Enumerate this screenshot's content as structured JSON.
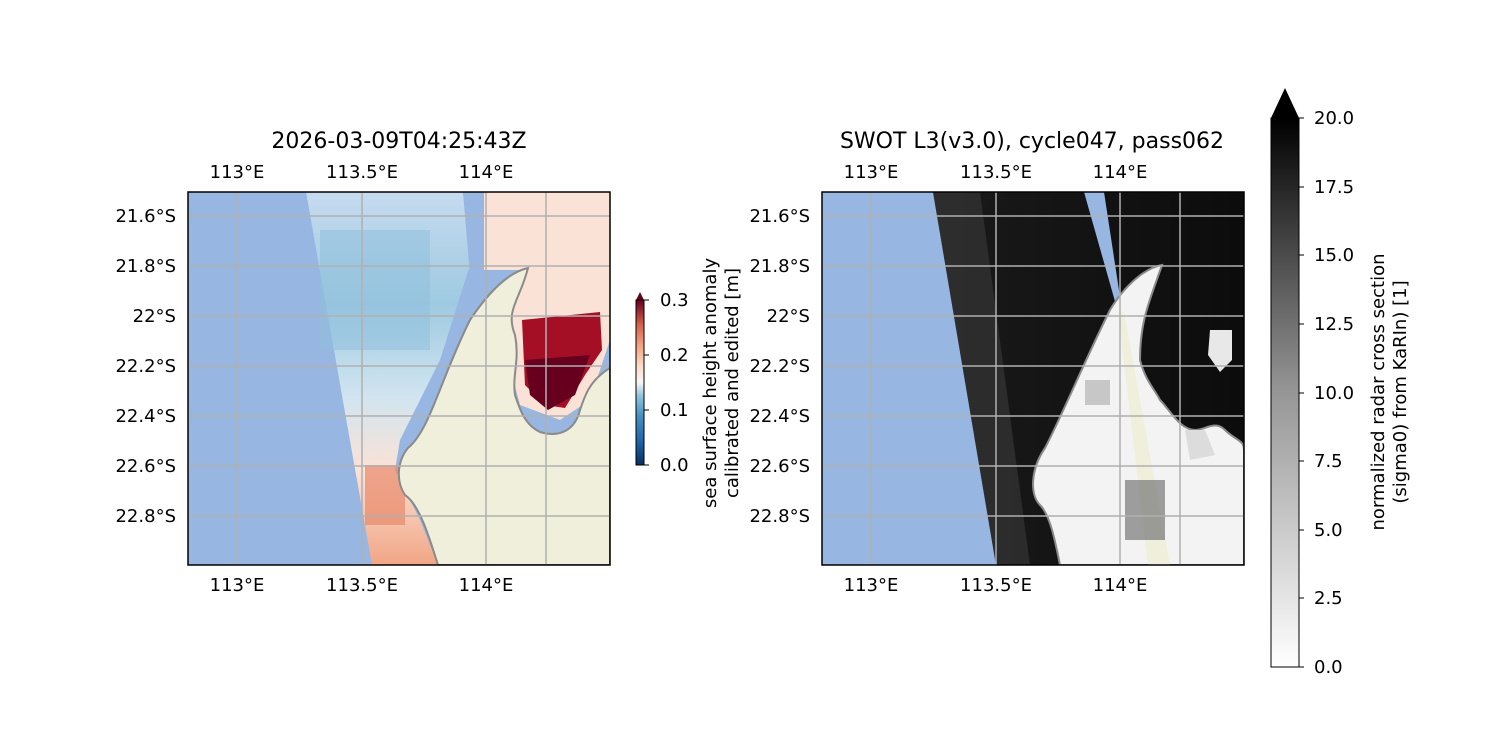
{
  "left_panel": {
    "title": "2026-03-09T04:25:43Z",
    "lon_ticks": [
      "113°E",
      "113.5°E",
      "114°E"
    ],
    "lat_ticks": [
      "21.6°S",
      "21.8°S",
      "22°S",
      "22.2°S",
      "22.4°S",
      "22.6°S",
      "22.8°S"
    ],
    "colorbar": {
      "label_line1": "sea surface height anomaly",
      "label_line2": "calibrated and edited [m]",
      "ticks": [
        "0.0",
        "0.1",
        "0.2",
        "0.3"
      ],
      "min": 0.0,
      "max": 0.3,
      "colormap": "RdBu_r",
      "extend": "max"
    }
  },
  "right_panel": {
    "title": "SWOT L3(v3.0), cycle047, pass062",
    "lon_ticks": [
      "113°E",
      "113.5°E",
      "114°E"
    ],
    "lat_ticks": [
      "21.6°S",
      "21.8°S",
      "22°S",
      "22.2°S",
      "22.4°S",
      "22.6°S",
      "22.8°S"
    ],
    "colorbar": {
      "label_line1": "normalized radar cross section",
      "label_line2": "(sigma0) from KaRIn) [1]",
      "ticks": [
        "0.0",
        "2.5",
        "5.0",
        "7.5",
        "10.0",
        "12.5",
        "15.0",
        "17.5",
        "20.0"
      ],
      "min": 0.0,
      "max": 20.0,
      "colormap": "Greys",
      "extend": "max"
    }
  },
  "colors": {
    "ocean": "#97b6e1",
    "land": "#efefdb",
    "coast": "#8a8a8a",
    "grid": "#b0b0b0"
  }
}
